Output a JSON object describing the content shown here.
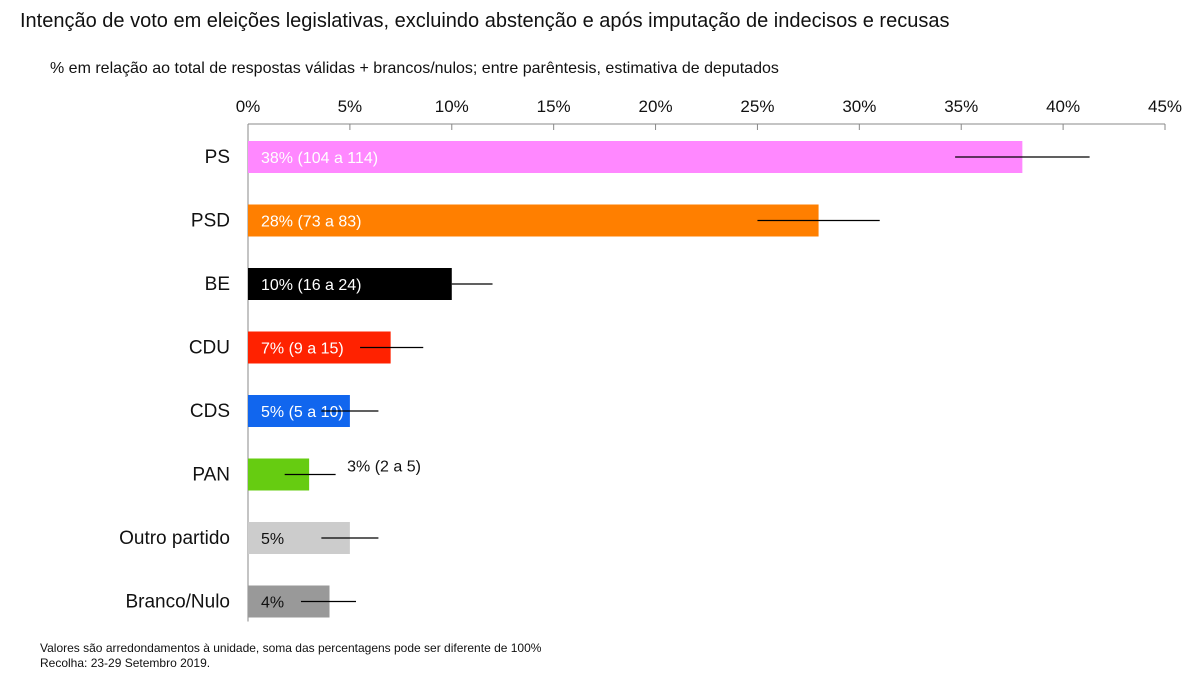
{
  "chart_data": {
    "type": "bar",
    "orientation": "horizontal",
    "title": "Intenção de voto em eleições legislativas, excluindo abstenção e após imputação de indecisos e recusas",
    "subtitle": "% em relação ao total de respostas válidas + brancos/nulos; entre parêntesis, estimativa de deputados",
    "xlim": [
      0,
      45
    ],
    "xticks": [
      0,
      5,
      10,
      15,
      20,
      25,
      30,
      35,
      40,
      45
    ],
    "xtick_labels": [
      "0%",
      "5%",
      "10%",
      "15%",
      "20%",
      "25%",
      "30%",
      "35%",
      "40%",
      "45%"
    ],
    "xaxis_position": "top",
    "categories": [
      "PS",
      "PSD",
      "BE",
      "CDU",
      "CDS",
      "PAN",
      "Outro partido",
      "Branco/Nulo"
    ],
    "values": [
      38,
      28,
      10,
      7,
      5,
      3,
      5,
      4
    ],
    "error_low": [
      34.7,
      25,
      10,
      5.5,
      3.6,
      1.8,
      3.6,
      2.6
    ],
    "error_high": [
      41.3,
      31,
      12,
      8.6,
      6.4,
      4.3,
      6.4,
      5.3
    ],
    "data_labels": [
      "38% (104 a 114)",
      "28% (73 a 83)",
      "10% (16 a 24)",
      "7% (9 a 15)",
      "5% (5 a 10)",
      "3% (2 a 5)",
      "5%",
      "4%"
    ],
    "colors": [
      "#ff88ff",
      "#ff7f00",
      "#000000",
      "#ff2200",
      "#1166ee",
      "#66cc11",
      "#cccccc",
      "#999999"
    ],
    "label_colors": [
      "#ffffff",
      "#ffffff",
      "#ffffff",
      "#ffffff",
      "#ffffff",
      "#111111",
      "#111111",
      "#111111"
    ],
    "label_outside": [
      false,
      false,
      false,
      false,
      false,
      true,
      false,
      false
    ]
  },
  "footer": {
    "note": "Valores são arredondamentos à unidade, soma das percentagens pode ser diferente de 100%",
    "source": "Recolha: 23-29 Setembro 2019."
  }
}
